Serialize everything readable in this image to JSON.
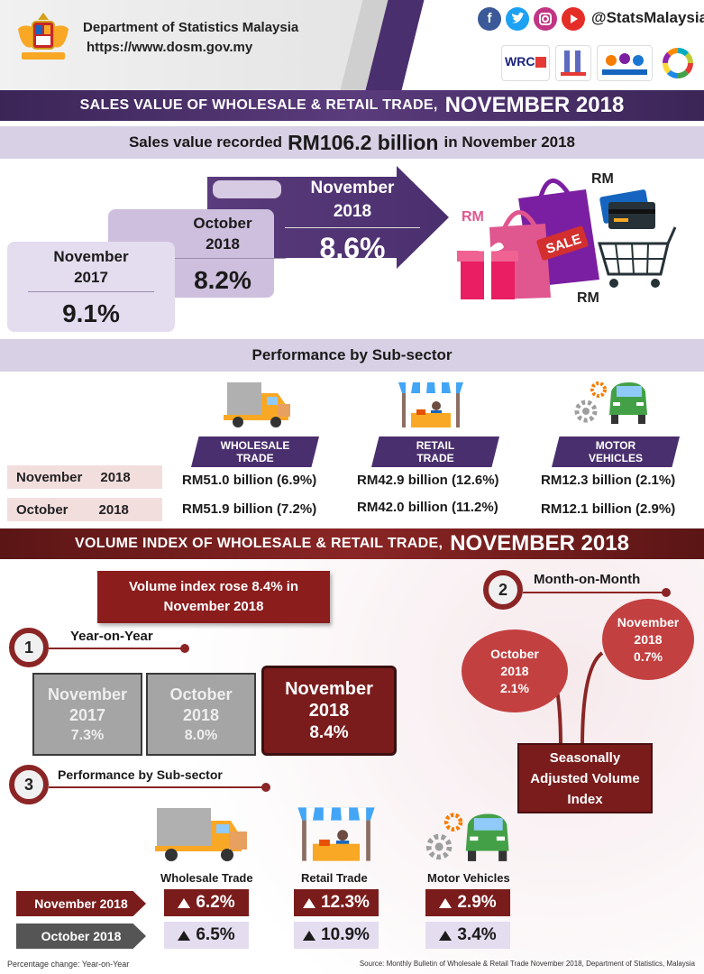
{
  "header": {
    "department": "Department of Statistics Malaysia",
    "url": "https://www.dosm.gov.my",
    "handle": "@StatsMalaysia",
    "social_icons": [
      "facebook-icon",
      "twitter-icon",
      "instagram-icon",
      "youtube-icon"
    ],
    "logos": [
      "WRC 2019",
      "ISI 2019",
      "census",
      "sdg"
    ]
  },
  "sales": {
    "section_title_small": "SALES VALUE OF WHOLESALE & RETAIL TRADE,",
    "section_title_big": "NOVEMBER 2018",
    "headline_pre": "Sales value recorded",
    "headline_value": "RM106.2 billion",
    "headline_post": "in November 2018",
    "steps": [
      {
        "label_line1": "November",
        "label_line2": "2017",
        "value": "9.1%"
      },
      {
        "label_line1": "October",
        "label_line2": "2018",
        "value": "8.2%"
      },
      {
        "label_line1": "November",
        "label_line2": "2018",
        "value": "8.6%"
      }
    ],
    "rm_labels": [
      "RM",
      "RM",
      "RM"
    ],
    "sale_tag": "SALE",
    "performance_title": "Performance by Sub-sector",
    "subsectors": [
      {
        "header_line1": "WHOLESALE",
        "header_line2": "TRADE",
        "nov": "RM51.0 billion  (6.9%)",
        "oct": "RM51.9 billion  (7.2%)"
      },
      {
        "header_line1": "RETAIL",
        "header_line2": "TRADE",
        "nov": "RM42.9 billion  (12.6%)",
        "oct": "RM42.0 billion  (11.2%)"
      },
      {
        "header_line1": "MOTOR",
        "header_line2": "VEHICLES",
        "nov": "RM12.3 billion  (2.1%)",
        "oct": "RM12.1 billion  (2.9%)"
      }
    ],
    "row_labels": [
      {
        "month": "November",
        "year": "2018"
      },
      {
        "month": "October",
        "year": "2018"
      }
    ]
  },
  "volume": {
    "section_title_small": "VOLUME INDEX OF WHOLESALE & RETAIL TRADE,",
    "section_title_big": "NOVEMBER 2018",
    "banner_line1": "Volume index rose 8.4% in",
    "banner_line2": "November  2018",
    "yoy": {
      "number": "1",
      "label": "Year-on-Year",
      "boxes": [
        {
          "label_line1": "November",
          "label_line2": "2017",
          "value": "7.3%"
        },
        {
          "label_line1": "October",
          "label_line2": "2018",
          "value": "8.0%"
        },
        {
          "label_line1": "November",
          "label_line2": "2018",
          "value": "8.4%"
        }
      ]
    },
    "mom": {
      "number": "2",
      "label": "Month-on-Month",
      "october": {
        "line1": "October",
        "line2": "2018",
        "value": "2.1%"
      },
      "november": {
        "line1": "November",
        "line2": "2018",
        "value": "0.7%"
      },
      "sa_line1": "Seasonally",
      "sa_line2": "Adjusted Volume",
      "sa_line3": "Index"
    },
    "perf": {
      "number": "3",
      "label": "Performance by Sub-sector",
      "columns": [
        "Wholesale Trade",
        "Retail Trade",
        "Motor Vehicles"
      ],
      "rows": [
        {
          "label": "November 2018",
          "values": [
            "6.2%",
            "12.3%",
            "2.9%"
          ]
        },
        {
          "label": "October 2018",
          "values": [
            "6.5%",
            "10.9%",
            "3.4%"
          ]
        }
      ]
    },
    "footnote_left": "Percentage change: Year-on-Year",
    "footnote_right": "Source: Monthly Bulletin of Wholesale & Retail Trade November 2018, Department of Statistics, Malaysia"
  },
  "colors": {
    "purple_dark": "#4a2f6e",
    "maroon": "#7a1c1c",
    "lavender": "#d8d0e4"
  }
}
